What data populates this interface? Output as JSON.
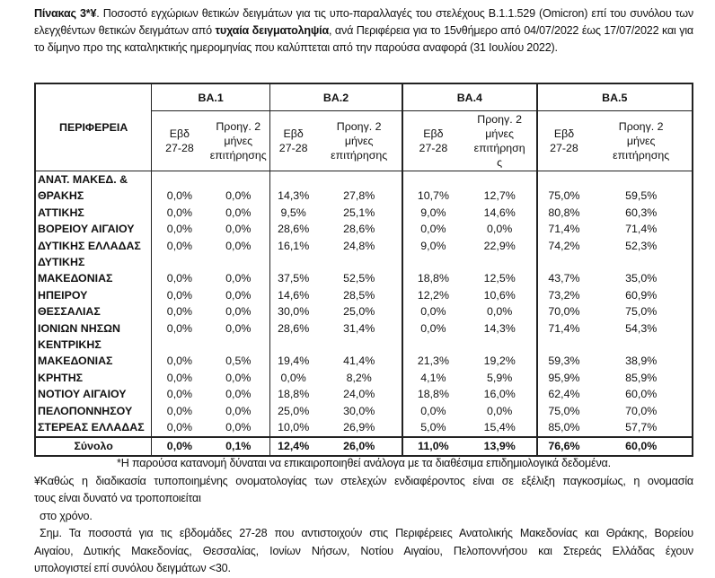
{
  "caption": {
    "label": "Πίνακας 3*¥",
    "text_before": ". Ποσοστό εγχώριων θετικών δειγμάτων για τις υπο-παραλλαγές του στελέχους Β.1.1.529 (Omicron) επί του συνόλου των ελεγχθέντων θετικών δειγμάτων από ",
    "bold_text": "τυχαία δειγματοληψία",
    "text_after": ", ανά Περιφέρεια για το 15νθήμερο από 04/07/2022 έως 17/07/2022 και για το δίμηνο προ της καταληκτικής ημερομηνίας που καλύπτεται από την παρούσα αναφορά (31 Ιουλίου 2022)."
  },
  "table": {
    "region_header": "ΠΕΡΙΦΕΡΕΙΑ",
    "groups": [
      "BA.1",
      "BA.2",
      "BA.4",
      "BA.5"
    ],
    "sub_week": [
      "Εβδ",
      "27-28"
    ],
    "sub_prev": [
      "Προηγ. 2",
      "μήνες",
      "επιτήρησης"
    ],
    "sub_prev_ba4": [
      "Προηγ. 2",
      "μήνες",
      "επιτήρηση",
      "ς"
    ],
    "rows": [
      {
        "region": [
          "ΑΝΑΤ. ΜΑΚΕΔ. &",
          "ΘΡΑΚΗΣ"
        ],
        "values": [
          "0,0%",
          "0,0%",
          "14,3%",
          "27,8%",
          "10,7%",
          "12,7%",
          "75,0%",
          "59,5%"
        ]
      },
      {
        "region": [
          "ΑΤΤΙΚΗΣ"
        ],
        "values": [
          "0,0%",
          "0,0%",
          "9,5%",
          "25,1%",
          "9,0%",
          "14,6%",
          "80,8%",
          "60,3%"
        ]
      },
      {
        "region": [
          "ΒΟΡΕΙΟΥ ΑΙΓΑΙΟΥ"
        ],
        "values": [
          "0,0%",
          "0,0%",
          "28,6%",
          "28,6%",
          "0,0%",
          "0,0%",
          "71,4%",
          "71,4%"
        ]
      },
      {
        "region": [
          "ΔΥΤΙΚΗΣ ΕΛΛΑΔΑΣ"
        ],
        "values": [
          "0,0%",
          "0,0%",
          "16,1%",
          "24,8%",
          "9,0%",
          "22,9%",
          "74,2%",
          "52,3%"
        ]
      },
      {
        "region": [
          "ΔΥΤΙΚΗΣ",
          "ΜΑΚΕΔΟΝΙΑΣ"
        ],
        "values": [
          "0,0%",
          "0,0%",
          "37,5%",
          "52,5%",
          "18,8%",
          "12,5%",
          "43,7%",
          "35,0%"
        ]
      },
      {
        "region": [
          "ΗΠΕΙΡΟΥ"
        ],
        "values": [
          "0,0%",
          "0,0%",
          "14,6%",
          "28,5%",
          "12,2%",
          "10,6%",
          "73,2%",
          "60,9%"
        ]
      },
      {
        "region": [
          "ΘΕΣΣΑΛΙΑΣ"
        ],
        "values": [
          "0,0%",
          "0,0%",
          "30,0%",
          "25,0%",
          "0,0%",
          "0,0%",
          "70,0%",
          "75,0%"
        ]
      },
      {
        "region": [
          "ΙΟΝΙΩΝ ΝΗΣΩΝ"
        ],
        "values": [
          "0,0%",
          "0,0%",
          "28,6%",
          "31,4%",
          "0,0%",
          "14,3%",
          "71,4%",
          "54,3%"
        ]
      },
      {
        "region": [
          "ΚΕΝΤΡΙΚΗΣ",
          "ΜΑΚΕΔΟΝΙΑΣ"
        ],
        "values": [
          "0,0%",
          "0,5%",
          "19,4%",
          "41,4%",
          "21,3%",
          "19,2%",
          "59,3%",
          "38,9%"
        ]
      },
      {
        "region": [
          "ΚΡΗΤΗΣ"
        ],
        "values": [
          "0,0%",
          "0,0%",
          "0,0%",
          "8,2%",
          "4,1%",
          "5,9%",
          "95,9%",
          "85,9%"
        ]
      },
      {
        "region": [
          "ΝΟΤΙΟΥ ΑΙΓΑΙΟΥ"
        ],
        "values": [
          "0,0%",
          "0,0%",
          "18,8%",
          "24,0%",
          "18,8%",
          "16,0%",
          "62,4%",
          "60,0%"
        ]
      },
      {
        "region": [
          "ΠΕΛΟΠΟΝΝΗΣΟΥ"
        ],
        "values": [
          "0,0%",
          "0,0%",
          "25,0%",
          "30,0%",
          "0,0%",
          "0,0%",
          "75,0%",
          "70,0%"
        ]
      },
      {
        "region": [
          "ΣΤΕΡΕΑΣ ΕΛΛΑΔΑΣ"
        ],
        "values": [
          "0,0%",
          "0,0%",
          "10,0%",
          "26,9%",
          "5,0%",
          "15,4%",
          "85,0%",
          "57,7%"
        ]
      }
    ],
    "total": {
      "label": "Σύνολο",
      "values": [
        "0,0%",
        "0,1%",
        "12,4%",
        "26,0%",
        "11,0%",
        "13,9%",
        "76,6%",
        "60,0%"
      ]
    }
  },
  "notes": {
    "n1": "*Η παρούσα κατανομή δύναται να επικαιροποιηθεί ανάλογα με τα διαθέσιμα επιδημιολογικά δεδομένα.",
    "n2a": "¥Καθώς η διαδικασία τυποποιημένης ονοματολογίας των στελεχών ενδιαφέροντος είναι σε εξέλιξη παγκοσμίως, η ονομασία",
    "n2b": "τους είναι δυνατό να τροποποιείται",
    "n2c": "στο χρόνο.",
    "n3a": "Σημ. Τα ποσοστά για τις εβδομάδες 27-28 που αντιστοιχούν στις Περιφέρειες Ανατολικής Μακεδονίας και Θράκης, Βορείου",
    "n3b": "Αιγαίου, Δυτικής Μακεδονίας, Θεσσαλίας, Ιονίων Νήσων, Νοτίου Αιγαίου, Πελοποννήσου και Στερεάς Ελλάδας έχουν",
    "n3c": "υπολογιστεί επί συνόλου δειγμάτων <30."
  }
}
